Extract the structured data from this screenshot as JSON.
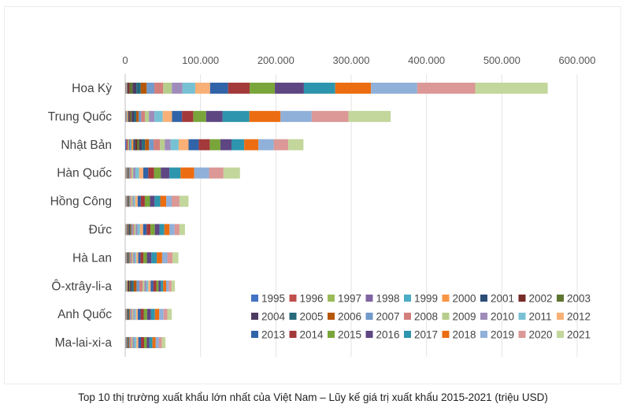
{
  "caption": "Top 10 thị trường xuất khẩu lớn nhất của Việt Nam – Lũy kế giá trị xuất khẩu 2015-2021 (triệu USD)",
  "chart_data": {
    "type": "bar",
    "orientation": "horizontal",
    "stacked": true,
    "title": "",
    "xlabel": "",
    "ylabel": "",
    "xlim": [
      0,
      600000
    ],
    "x_ticks": [
      "0",
      "100.000",
      "200.000",
      "300.000",
      "400.000",
      "500.000",
      "600.000"
    ],
    "x_tick_values": [
      0,
      100000,
      200000,
      300000,
      400000,
      500000,
      600000
    ],
    "x_axis_position": "top",
    "grid": true,
    "legend_position": "bottom-right",
    "categories": [
      "Hoa Kỳ",
      "Trung Quốc",
      "Nhật Bản",
      "Hàn Quốc",
      "Hồng Công",
      "Đức",
      "Hà Lan",
      "Ô-xtrây-li-a",
      "Anh Quốc",
      "Ma-lai-xi-a"
    ],
    "series": [
      {
        "name": "1995",
        "color": "#4472c4",
        "values": [
          200,
          400,
          1500,
          250,
          300,
          300,
          150,
          150,
          200,
          150
        ]
      },
      {
        "name": "1996",
        "color": "#c0504d",
        "values": [
          300,
          500,
          2000,
          400,
          350,
          350,
          200,
          200,
          250,
          200
        ]
      },
      {
        "name": "1997",
        "color": "#9bbb59",
        "values": [
          300,
          400,
          1500,
          300,
          400,
          400,
          350,
          250,
          300,
          200
        ]
      },
      {
        "name": "1998",
        "color": "#8064a2",
        "values": [
          500,
          500,
          1500,
          300,
          400,
          400,
          350,
          250,
          300,
          300
        ]
      },
      {
        "name": "1999",
        "color": "#4bacc6",
        "values": [
          500,
          700,
          1800,
          300,
          450,
          500,
          400,
          1000,
          350,
          300
        ]
      },
      {
        "name": "2000",
        "color": "#f79646",
        "values": [
          700,
          1500,
          2500,
          400,
          500,
          700,
          450,
          1300,
          450,
          400
        ]
      },
      {
        "name": "2001",
        "color": "#2c4d75",
        "values": [
          1000,
          1400,
          2500,
          400,
          450,
          750,
          500,
          1000,
          500,
          400
        ]
      },
      {
        "name": "2002",
        "color": "#772c2a",
        "values": [
          2400,
          1500,
          2400,
          500,
          400,
          700,
          550,
          1200,
          600,
          350
        ]
      },
      {
        "name": "2003",
        "color": "#5f7530",
        "values": [
          3900,
          1700,
          2900,
          500,
          400,
          800,
          600,
          1400,
          700,
          500
        ]
      },
      {
        "name": "2004",
        "color": "#4d3b62",
        "values": [
          5000,
          2900,
          3500,
          600,
          500,
          850,
          650,
          1900,
          800,
          600
        ]
      },
      {
        "name": "2005",
        "color": "#276a7c",
        "values": [
          5900,
          3200,
          4300,
          700,
          600,
          1000,
          800,
          2700,
          900,
          800
        ]
      },
      {
        "name": "2006",
        "color": "#b65708",
        "values": [
          7800,
          3000,
          5200,
          800,
          800,
          1300,
          1000,
          3700,
          1100,
          1000
        ]
      },
      {
        "name": "2007",
        "color": "#729aca",
        "values": [
          10100,
          3600,
          6100,
          1200,
          1000,
          1800,
          1200,
          3800,
          1300,
          1200
        ]
      },
      {
        "name": "2008",
        "color": "#d3807d",
        "values": [
          11900,
          4800,
          8500,
          1800,
          1500,
          2100,
          1700,
          4300,
          1500,
          1900
        ]
      },
      {
        "name": "2009",
        "color": "#b7cd8c",
        "values": [
          11400,
          5400,
          6300,
          2100,
          1800,
          1900,
          1700,
          2300,
          1400,
          1600
        ]
      },
      {
        "name": "2010",
        "color": "#9f8cba",
        "values": [
          14200,
          7300,
          7700,
          3100,
          1500,
          2400,
          2000,
          2700,
          1700,
          2100
        ]
      },
      {
        "name": "2011",
        "color": "#78c1d4",
        "values": [
          16900,
          11100,
          10800,
          4700,
          1900,
          3400,
          2200,
          2500,
          2100,
          2800
        ]
      },
      {
        "name": "2012",
        "color": "#f9b076",
        "values": [
          19700,
          12300,
          13100,
          5600,
          3400,
          4100,
          2500,
          3200,
          2300,
          2600
        ]
      },
      {
        "name": "2013",
        "color": "#3063a8",
        "values": [
          23900,
          13200,
          13500,
          6700,
          4100,
          4700,
          3000,
          3500,
          3700,
          3500
        ]
      },
      {
        "name": "2014",
        "color": "#a3393b",
        "values": [
          28600,
          14900,
          14700,
          7700,
          5300,
          5200,
          3800,
          4000,
          4100,
          4200
        ]
      },
      {
        "name": "2015",
        "color": "#79a53a",
        "values": [
          33500,
          17100,
          14100,
          8900,
          6900,
          5700,
          4700,
          2900,
          4600,
          3600
        ]
      },
      {
        "name": "2016",
        "color": "#5e4683",
        "values": [
          38500,
          22000,
          14700,
          11400,
          6100,
          6200,
          6000,
          2900,
          4900,
          3300
        ]
      },
      {
        "name": "2017",
        "color": "#2d95ad",
        "values": [
          41600,
          35500,
          16900,
          14800,
          7500,
          6400,
          7100,
          3300,
          5400,
          4200
        ]
      },
      {
        "name": "2018",
        "color": "#ec6d11",
        "values": [
          47500,
          41300,
          18800,
          18200,
          7900,
          6900,
          7100,
          3900,
          5700,
          4100
        ]
      },
      {
        "name": "2019",
        "color": "#8fb0d9",
        "values": [
          61300,
          41400,
          20400,
          19700,
          7200,
          6600,
          6900,
          3500,
          5800,
          4200
        ]
      },
      {
        "name": "2020",
        "color": "#db9896",
        "values": [
          77000,
          48900,
          19300,
          19100,
          10400,
          6600,
          7000,
          3600,
          5000,
          4300
        ]
      },
      {
        "name": "2021",
        "color": "#c3d69b",
        "values": [
          96300,
          55900,
          20100,
          21900,
          12000,
          7300,
          7700,
          4500,
          5800,
          4600
        ]
      }
    ]
  }
}
